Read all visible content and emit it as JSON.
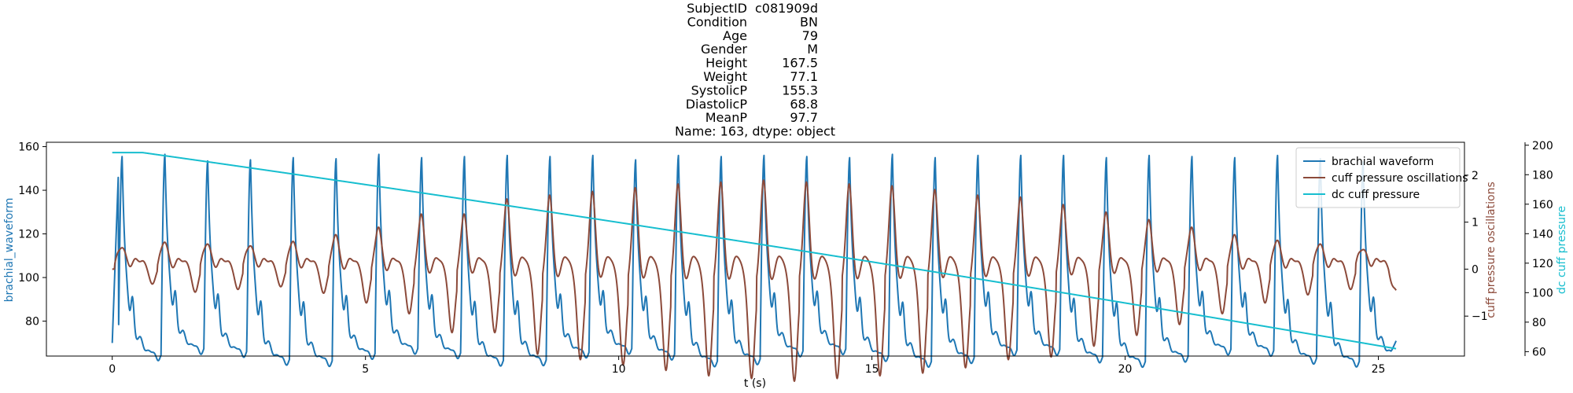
{
  "chart_data": {
    "type": "line",
    "title_lines": [
      {
        "key": "SubjectID",
        "value": "c081909d"
      },
      {
        "key": "Condition",
        "value": "BN"
      },
      {
        "key": "Age",
        "value": "79"
      },
      {
        "key": "Gender",
        "value": "M"
      },
      {
        "key": "Height",
        "value": "167.5"
      },
      {
        "key": "Weight",
        "value": "77.1"
      },
      {
        "key": "SystolicP",
        "value": "155.3"
      },
      {
        "key": "DiastolicP",
        "value": "68.8"
      },
      {
        "key": "MeanP",
        "value": "97.7"
      }
    ],
    "title_footer": "Name: 163, dtype: object",
    "xlabel": "t (s)",
    "xlim": [
      -1.3,
      26.7
    ],
    "xticks": [
      0,
      5,
      10,
      15,
      20,
      25
    ],
    "axes": {
      "left": {
        "label": "brachial_waveform",
        "color": "#1f77b4",
        "lim": [
          64,
          162
        ],
        "ticks": [
          80,
          100,
          120,
          140,
          160
        ]
      },
      "right1": {
        "label": "cuff pressure oscillations",
        "color": "#8c4a3a",
        "lim": [
          -1.85,
          2.7
        ],
        "ticks": [
          -1,
          0,
          1,
          2
        ]
      },
      "right2": {
        "label": "dc cuff pressure",
        "color": "#17becf",
        "lim": [
          57,
          202
        ],
        "ticks": [
          60,
          80,
          100,
          120,
          140,
          160,
          180,
          200
        ]
      }
    },
    "series": [
      {
        "name": "brachial waveform",
        "axis": "left",
        "color": "#1f77b4",
        "t_range": [
          0,
          25.35
        ],
        "n_beats": 30,
        "beat_peaks": [
          155.5,
          156.5,
          153.5,
          154,
          155,
          154.5,
          156.5,
          155,
          155.5,
          156,
          155.5,
          156,
          154,
          156,
          155.5,
          156,
          155.5,
          155,
          156.5,
          155,
          156,
          156,
          156,
          155,
          156,
          155.5,
          155,
          156,
          154.5,
          153
        ],
        "start_value": 70,
        "trough_value": 66,
        "end_value": 71
      },
      {
        "name": "cuff pressure oscillations",
        "axis": "right1",
        "color": "#8c4a3a",
        "t_range": [
          0,
          25.35
        ],
        "beat_amplitudes": [
          0.45,
          0.6,
          0.55,
          0.5,
          0.62,
          0.8,
          1.0,
          1.35,
          1.35,
          1.75,
          1.85,
          1.95,
          2.05,
          2.15,
          2.2,
          2.25,
          2.2,
          2.15,
          2.1,
          2.0,
          1.85,
          1.8,
          1.6,
          1.4,
          1.2,
          1.0,
          0.8,
          0.65,
          0.55,
          0.4
        ],
        "start_value": 0.0,
        "end_value": -0.45
      },
      {
        "name": "dc cuff pressure",
        "axis": "right2",
        "color": "#17becf",
        "t_range": [
          0,
          25.35
        ],
        "start_value": 195,
        "plateau_until": 0.6,
        "end_value": 62
      }
    ],
    "legend_position": "upper right",
    "grid": false
  }
}
